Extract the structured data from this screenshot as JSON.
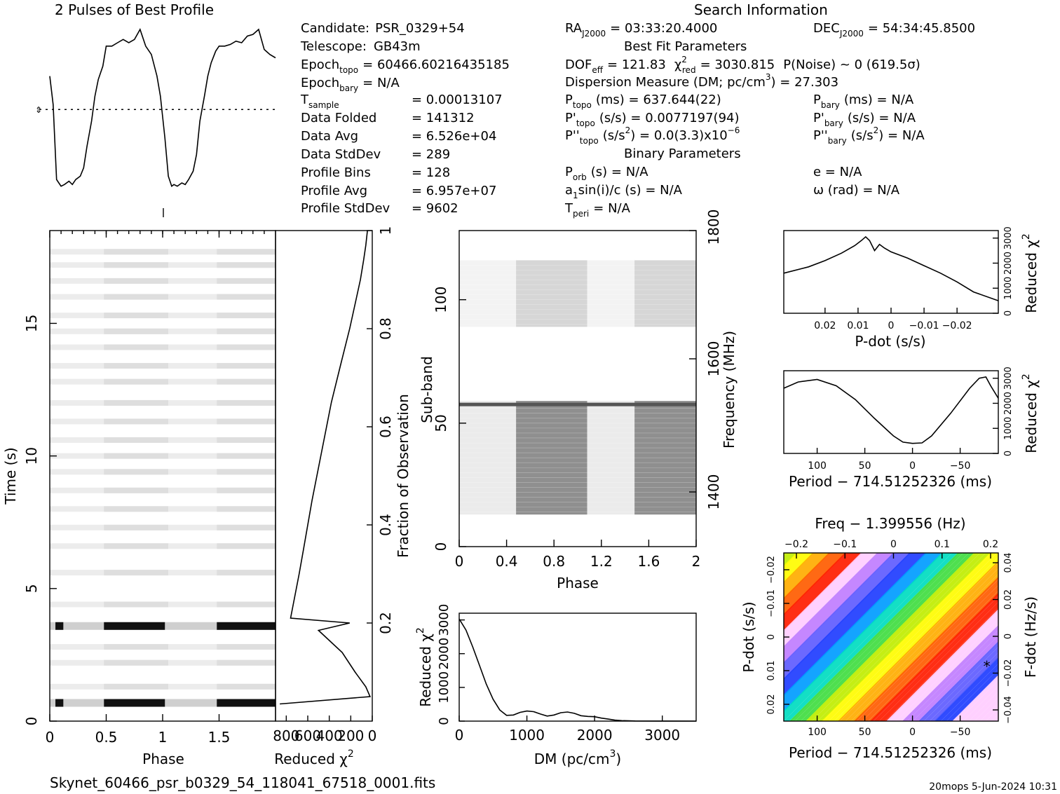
{
  "header": {
    "profile_title": "2 Pulses of Best Profile",
    "search_title": "Search Information",
    "best_fit_title": "Best Fit Parameters",
    "binary_title": "Binary Parameters"
  },
  "info_left": [
    {
      "label": "Candidate:",
      "value": "PSR_0329+54"
    },
    {
      "label": "Telescope:",
      "value": "GB43m"
    },
    {
      "label": "Epoch",
      "sub": "topo",
      "value": "= 60466.60216435185"
    },
    {
      "label": "Epoch",
      "sub": "bary",
      "value": "= N/A"
    },
    {
      "label": "T",
      "sub": "sample",
      "value": "=   0.00013107"
    },
    {
      "label": "Data Folded",
      "value": "=   141312"
    },
    {
      "label": "Data Avg",
      "value": "=   6.526e+04"
    },
    {
      "label": "Data StdDev",
      "value": "=   289"
    },
    {
      "label": "Profile Bins",
      "value": "=   128"
    },
    {
      "label": "Profile Avg",
      "value": "=   6.957e+07"
    },
    {
      "label": "Profile StdDev",
      "value": "=   9602"
    }
  ],
  "info_right": {
    "ra": "RA",
    "ra_sub": "J2000",
    "ra_value": "= 03:33:20.4000",
    "dec": "DEC",
    "dec_sub": "J2000",
    "dec_value": "= 54:34:45.8500",
    "dof": "DOF",
    "dof_sub": "eff",
    "dof_value": "= 121.83",
    "chi": "χ",
    "chi_sup": "2",
    "chi_sub": "red",
    "chi_value": "= 3030.815",
    "pnoise": "P(Noise) ~ 0   (619.5σ)",
    "dm_line": "Dispersion Measure (DM; pc/cm",
    "dm_sup": "3",
    "dm_value": ") = 27.303",
    "ptopo": "P",
    "ptopo_sub": "topo",
    "ptopo_value": "(ms) =  637.644(22)",
    "pdtopo": "P'",
    "pdtopo_sub": "topo",
    "pdtopo_value": "(s/s) =  0.0077197(94)",
    "pddtopo": "P''",
    "pddtopo_sub": "topo",
    "pddtopo_value_a": "(s/s",
    "pddtopo_value_b": ") = 0.0(3.3)x10",
    "pddtopo_exp": "−6",
    "pbary": "P",
    "pbary_sub": "bary",
    "pbary_value": "(ms) = N/A",
    "pdbary": "P'",
    "pdbary_sub": "bary",
    "pdbary_value": "(s/s) = N/A",
    "pddbary": "P''",
    "pddbary_sub": "bary",
    "pddbary_value_a": "(s/s",
    "pddbary_value_b": ") = N/A",
    "sup2": "2",
    "porb": "P",
    "porb_sub": "orb",
    "porb_value": "(s) = N/A",
    "a1": "a",
    "a1_sub": "1",
    "a1_value": "sin(i)/c (s) = N/A",
    "tperi": "T",
    "tperi_sub": "peri",
    "tperi_value": "= N/A",
    "ecc": "e = N/A",
    "omega": "ω (rad) = N/A"
  },
  "footer": {
    "filename": "Skynet_60466_psr_b0329_54_118041_67518_0001.fits",
    "stamp": "20mops  5-Jun-2024 10:31"
  },
  "chart_data": [
    {
      "id": "profile",
      "type": "line",
      "title": "2 Pulses of Best Profile",
      "x": [
        0.0,
        0.03,
        0.06,
        0.08,
        0.1,
        0.13,
        0.17,
        0.2,
        0.23,
        0.27,
        0.3,
        0.33,
        0.37,
        0.4,
        0.43,
        0.47,
        0.5,
        0.55,
        0.6,
        0.65,
        0.7,
        0.75,
        0.8,
        0.85,
        0.9,
        0.95,
        0.98,
        1.02,
        1.05,
        1.08,
        1.1,
        1.13,
        1.17,
        1.2,
        1.23,
        1.27,
        1.3,
        1.33,
        1.37,
        1.4,
        1.43,
        1.47,
        1.5,
        1.55,
        1.6,
        1.65,
        1.7,
        1.75,
        1.8,
        1.85,
        1.9,
        1.95,
        2.0
      ],
      "values": [
        0.72,
        0.55,
        0.1,
        0.08,
        0.06,
        0.07,
        0.09,
        0.07,
        0.1,
        0.12,
        0.17,
        0.3,
        0.45,
        0.6,
        0.7,
        0.78,
        0.9,
        0.9,
        0.92,
        0.94,
        0.92,
        0.94,
        1.0,
        0.9,
        0.85,
        0.72,
        0.6,
        0.35,
        0.12,
        0.06,
        0.07,
        0.06,
        0.08,
        0.07,
        0.1,
        0.15,
        0.25,
        0.45,
        0.6,
        0.72,
        0.8,
        0.87,
        0.9,
        0.9,
        0.91,
        0.93,
        0.92,
        0.96,
        0.97,
        1.0,
        0.88,
        0.85,
        0.83
      ],
      "mean_line": 0.52,
      "xlim": [
        0,
        2
      ]
    },
    {
      "id": "time-phase",
      "type": "heatmap",
      "xlabel": "Phase",
      "ylabel": "Time (s)",
      "xlim": [
        0,
        2
      ],
      "ylim": [
        0,
        18.5
      ],
      "x_ticks": [
        "0",
        "0.5",
        "1",
        "1.5"
      ],
      "y_ticks": [
        "0",
        "5",
        "10",
        "15"
      ],
      "bright_rows_s": [
        0.7,
        3.6
      ],
      "faint_rows_s": [
        1.3,
        2.2,
        2.8,
        4.4,
        5.6,
        6.6,
        7.3,
        8.0,
        8.7,
        9.4,
        10.0,
        10.6,
        11.3,
        12.0,
        12.8,
        13.4,
        14.1,
        14.7,
        15.3,
        16.0,
        16.6,
        17.2,
        17.7
      ]
    },
    {
      "id": "chi-vs-fraction",
      "type": "line",
      "xlabel": "Reduced χ",
      "xlabel_sup": "2",
      "ylabel": "Fraction of Observation",
      "x_ticks": [
        "800",
        "600",
        "400",
        "200",
        "0"
      ],
      "y_ticks": [
        "0.2",
        "0.4",
        "0.6",
        "0.8",
        "1"
      ],
      "chi": [
        860,
        20,
        60,
        160,
        280,
        500,
        210,
        760,
        680,
        640,
        560,
        470,
        380,
        290,
        210,
        150,
        110,
        80,
        60,
        45
      ],
      "fraction": [
        0.035,
        0.05,
        0.07,
        0.1,
        0.14,
        0.185,
        0.2,
        0.21,
        0.3,
        0.35,
        0.45,
        0.55,
        0.65,
        0.73,
        0.8,
        0.86,
        0.9,
        0.94,
        0.97,
        1.0
      ]
    },
    {
      "id": "subband-phase",
      "type": "heatmap",
      "xlabel": "Phase",
      "ylabel": "Sub-band",
      "y2label": "Frequency (MHz)",
      "xlim": [
        0,
        2
      ],
      "ylim": [
        0,
        128
      ],
      "x_ticks": [
        "0",
        "0.4",
        "0.8",
        "1.2",
        "1.6",
        "2"
      ],
      "y_ticks": [
        "0",
        "50",
        "100"
      ],
      "freq_ticks": [
        "1400",
        "1600",
        "1800"
      ],
      "active_bands": [
        [
          13,
          59
        ],
        [
          89,
          116
        ]
      ],
      "pulse_phase": [
        [
          0.48,
          1.08
        ],
        [
          1.48,
          2.0
        ]
      ]
    },
    {
      "id": "dm-chi",
      "type": "line",
      "xlabel": "DM (pc/cm",
      "xlabel_sup": "3",
      "ylabel": "Reduced χ",
      "ylabel_sup": "2",
      "x_ticks": [
        "0",
        "1000",
        "2000",
        "3000"
      ],
      "y_ticks": [
        "0",
        "1000",
        "2000",
        "3000"
      ],
      "dm": [
        0,
        100,
        200,
        300,
        400,
        500,
        600,
        700,
        800,
        900,
        1000,
        1100,
        1200,
        1300,
        1400,
        1500,
        1600,
        1700,
        1800,
        1900,
        2000,
        2100,
        2200,
        2300,
        2400,
        2600,
        3000,
        3500
      ],
      "chi": [
        3030,
        2700,
        2200,
        1650,
        1100,
        650,
        330,
        170,
        180,
        260,
        300,
        280,
        210,
        150,
        180,
        250,
        270,
        230,
        160,
        140,
        130,
        90,
        60,
        30,
        15,
        5,
        2,
        1
      ],
      "xlim": [
        0,
        3500
      ],
      "ylim": [
        0,
        3200
      ]
    },
    {
      "id": "pdot-chi",
      "type": "line",
      "xlabel": "P-dot (s/s)",
      "ylabel": "Reduced χ",
      "ylabel_sup": "2",
      "x_ticks": [
        "0.02",
        "0.01",
        "0",
        "−0.01",
        "−0.02"
      ],
      "y_ticks": [
        "0",
        "1000",
        "2000",
        "3000"
      ],
      "pdot": [
        0.0325,
        0.025,
        0.02,
        0.015,
        0.011,
        0.009,
        0.0077,
        0.0065,
        0.005,
        0.0035,
        0.002,
        0.0,
        -0.005,
        -0.01,
        -0.015,
        -0.02,
        -0.025,
        -0.0325
      ],
      "chi": [
        1600,
        1850,
        2100,
        2400,
        2700,
        2900,
        3050,
        2900,
        2500,
        2750,
        2600,
        2450,
        2200,
        1900,
        1600,
        1250,
        850,
        500
      ],
      "xlim": [
        0.0325,
        -0.0325
      ],
      "ylim": [
        0,
        3300
      ]
    },
    {
      "id": "period-chi",
      "type": "line",
      "xlabel": "Period − 714.51252326 (ms)",
      "ylabel": "Reduced χ",
      "ylabel_sup": "2",
      "x_ticks": [
        "100",
        "50",
        "0",
        "−50"
      ],
      "y_ticks": [
        "0",
        "1000",
        "2000",
        "3000"
      ],
      "period": [
        135,
        120,
        100,
        80,
        60,
        40,
        20,
        10,
        0,
        -10,
        -20,
        -40,
        -60,
        -70,
        -77,
        -82,
        -90
      ],
      "chi": [
        2600,
        2850,
        2950,
        2700,
        2150,
        1400,
        700,
        450,
        400,
        420,
        700,
        1600,
        2600,
        3000,
        3050,
        2700,
        2200
      ],
      "xlim": [
        135,
        -90
      ],
      "ylim": [
        0,
        3300
      ]
    },
    {
      "id": "period-pdot",
      "type": "heatmap",
      "xlabel": "Period − 714.51252326 (ms)",
      "ylabel": "P-dot (s/s)",
      "x2label": "Freq − 1.399556 (Hz)",
      "y2label": "F-dot (Hz/s)",
      "x_ticks": [
        "100",
        "50",
        "0",
        "−50"
      ],
      "y_ticks": [
        "−0.02",
        "−0.01",
        "0",
        "0.01",
        "0.02"
      ],
      "freq_ticks": [
        "−0.2",
        "−0.1",
        "0",
        "0.1",
        "0.2"
      ],
      "fdot_ticks": [
        "0.04",
        "0.02",
        "0",
        "−0.02",
        "−0.04"
      ],
      "best_period": -78,
      "best_pdot": 0.0077,
      "colors": [
        "#ffd0ff",
        "#c080ff",
        "#6060ff",
        "#2040ff",
        "#00a0ff",
        "#00e0c0",
        "#40e040",
        "#c0f000",
        "#ffff00",
        "#ffb000",
        "#ff6000",
        "#ff2000"
      ]
    }
  ]
}
